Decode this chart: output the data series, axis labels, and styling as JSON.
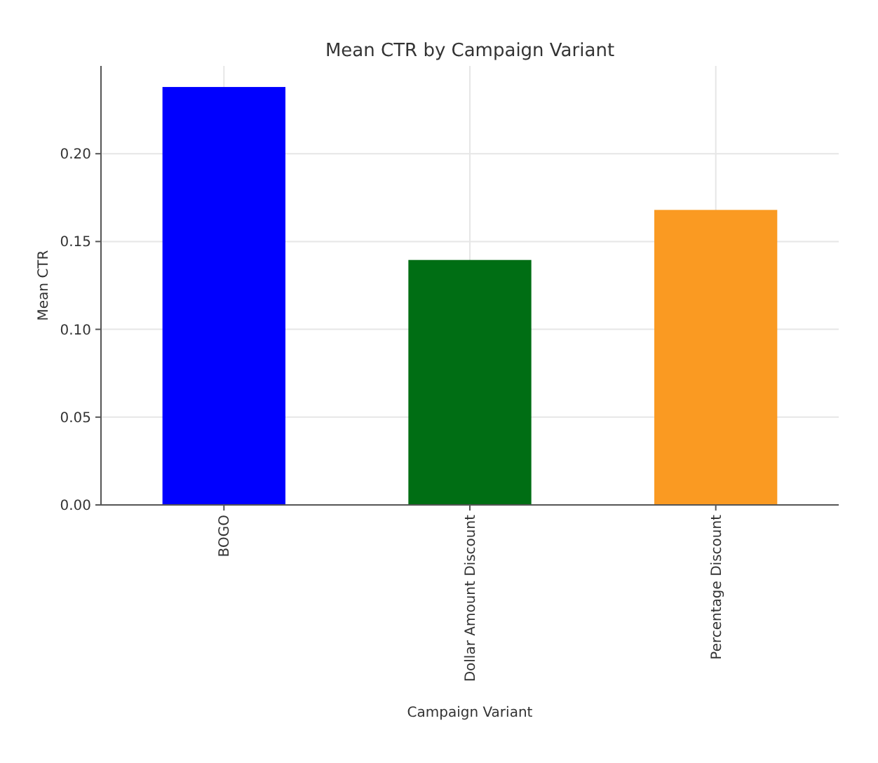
{
  "chart_data": {
    "type": "bar",
    "title": "Mean CTR by Campaign Variant",
    "xlabel": "Campaign Variant",
    "ylabel": "Mean CTR",
    "categories": [
      "BOGO",
      "Dollar Amount Discount",
      "Percentage Discount"
    ],
    "values": [
      0.238,
      0.1395,
      0.168
    ],
    "colors": [
      "#0000ff",
      "#006e14",
      "#fa9a22"
    ],
    "ylim": [
      0,
      0.25
    ],
    "yticks": [
      {
        "value": 0,
        "label": "0.00"
      },
      {
        "value": 0.05,
        "label": "0.05"
      },
      {
        "value": 0.1,
        "label": "0.10"
      },
      {
        "value": 0.15,
        "label": "0.15"
      },
      {
        "value": 0.2,
        "label": "0.20"
      }
    ],
    "grid": true
  }
}
